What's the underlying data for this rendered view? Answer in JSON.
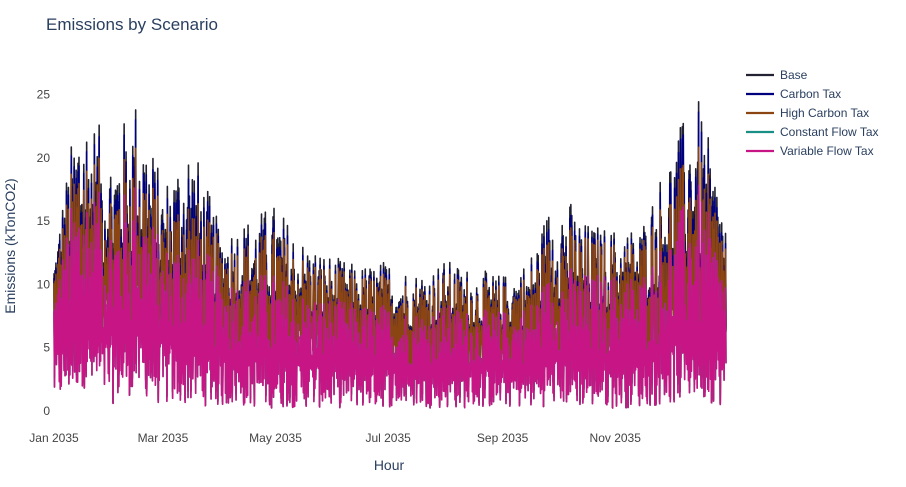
{
  "chart_data": {
    "type": "line",
    "title": "Emissions by Scenario",
    "xlabel": "Hour",
    "ylabel": "Emissions (kTonCO2)",
    "x_range": [
      "2035-01-01",
      "2035-12-31"
    ],
    "ylim": [
      0,
      26
    ],
    "x_ticks": [
      {
        "date": "2035-01-01",
        "label": "Jan 2035"
      },
      {
        "date": "2035-03-01",
        "label": "Mar 2035"
      },
      {
        "date": "2035-05-01",
        "label": "May 2035"
      },
      {
        "date": "2035-07-01",
        "label": "Jul 2035"
      },
      {
        "date": "2035-09-01",
        "label": "Sep 2035"
      },
      {
        "date": "2035-11-01",
        "label": "Nov 2035"
      }
    ],
    "y_ticks": [
      0,
      5,
      10,
      15,
      20,
      25
    ],
    "grid": false,
    "legend_position": "top-right",
    "series": [
      {
        "name": "Base",
        "color": "#222233",
        "x": [
          "2035-01-01",
          "2035-01-15",
          "2035-02-01",
          "2035-02-15",
          "2035-03-01",
          "2035-03-15",
          "2035-04-01",
          "2035-04-15",
          "2035-05-01",
          "2035-05-15",
          "2035-06-01",
          "2035-06-15",
          "2035-07-01",
          "2035-07-15",
          "2035-08-01",
          "2035-08-15",
          "2035-09-01",
          "2035-09-15",
          "2035-10-01",
          "2035-10-15",
          "2035-11-01",
          "2035-11-15",
          "2035-12-01",
          "2035-12-15",
          "2035-12-31"
        ],
        "max": [
          13,
          25.3,
          21,
          25.3,
          18,
          22.3,
          14.5,
          15.3,
          16.5,
          13.7,
          12.3,
          11.5,
          12,
          11,
          12,
          11.3,
          10.8,
          12,
          18.3,
          15,
          14.5,
          14.8,
          21,
          25.3,
          16
        ],
        "mid": [
          8,
          12,
          11,
          12,
          10,
          10.5,
          8.5,
          8.5,
          8.3,
          7.5,
          7,
          6.7,
          6.8,
          6.5,
          6.7,
          6.5,
          6.2,
          6.8,
          8.5,
          7.8,
          8,
          8.3,
          10.5,
          12,
          8.5
        ],
        "min": [
          0.5,
          2,
          0.5,
          1.5,
          0.3,
          0.5,
          0.3,
          0.3,
          0.2,
          0.3,
          0.2,
          0.3,
          0.3,
          0.3,
          0.2,
          0.2,
          0.3,
          0.2,
          0.5,
          0.3,
          0.2,
          0.3,
          0.5,
          1,
          0.3
        ]
      },
      {
        "name": "Carbon Tax",
        "color": "#00007f",
        "x": [
          "2035-01-01",
          "2035-01-15",
          "2035-02-01",
          "2035-02-15",
          "2035-03-01",
          "2035-03-15",
          "2035-04-01",
          "2035-04-15",
          "2035-05-01",
          "2035-05-15",
          "2035-06-01",
          "2035-06-15",
          "2035-07-01",
          "2035-07-15",
          "2035-08-01",
          "2035-08-15",
          "2035-09-01",
          "2035-09-15",
          "2035-10-01",
          "2035-10-15",
          "2035-11-01",
          "2035-11-15",
          "2035-12-01",
          "2035-12-15",
          "2035-12-31"
        ],
        "max": [
          12.5,
          24.5,
          20,
          24.5,
          17,
          21,
          14,
          14.5,
          15.5,
          13,
          11.8,
          11,
          11.5,
          10.5,
          11.5,
          10.8,
          10.3,
          11.5,
          17,
          14.5,
          14,
          14.3,
          20,
          24.5,
          15
        ],
        "mid": [
          7.8,
          11.5,
          10.5,
          11.5,
          9.6,
          10,
          8.2,
          8.2,
          8,
          7.3,
          6.8,
          6.5,
          6.6,
          6.3,
          6.5,
          6.3,
          6,
          6.6,
          8.2,
          7.5,
          7.8,
          8,
          10,
          11.5,
          8.2
        ],
        "min": [
          0.5,
          2,
          0.5,
          1.5,
          0.3,
          0.5,
          0.3,
          0.3,
          0.2,
          0.3,
          0.2,
          0.3,
          0.3,
          0.3,
          0.2,
          0.2,
          0.3,
          0.2,
          0.5,
          0.3,
          0.2,
          0.3,
          0.5,
          1,
          0.3
        ]
      },
      {
        "name": "High Carbon Tax",
        "color": "#8b4513",
        "x": [
          "2035-01-01",
          "2035-01-15",
          "2035-02-01",
          "2035-02-15",
          "2035-03-01",
          "2035-03-15",
          "2035-04-01",
          "2035-04-15",
          "2035-05-01",
          "2035-05-15",
          "2035-06-01",
          "2035-06-15",
          "2035-07-01",
          "2035-07-15",
          "2035-08-01",
          "2035-08-15",
          "2035-09-01",
          "2035-09-15",
          "2035-10-01",
          "2035-10-15",
          "2035-11-01",
          "2035-11-15",
          "2035-12-01",
          "2035-12-15",
          "2035-12-31"
        ],
        "max": [
          12,
          22.5,
          18.5,
          22,
          16,
          18,
          13.5,
          13.5,
          14.5,
          12.5,
          11.5,
          10.8,
          11,
          10.2,
          11,
          10.5,
          10,
          11,
          15.5,
          14,
          13.5,
          13.8,
          18,
          21.5,
          14.5
        ],
        "mid": [
          7.5,
          11,
          10,
          11,
          9.3,
          9.5,
          8,
          8,
          7.8,
          7.2,
          6.7,
          6.4,
          6.5,
          6.2,
          6.4,
          6.2,
          5.9,
          6.5,
          8,
          7.3,
          7.6,
          7.8,
          9.5,
          11,
          8
        ],
        "min": [
          0.5,
          2,
          0.5,
          1.5,
          0.3,
          0.5,
          0.3,
          0.3,
          0.2,
          0.3,
          0.2,
          0.3,
          0.3,
          0.3,
          0.2,
          0.2,
          0.3,
          0.2,
          0.5,
          0.3,
          0.2,
          0.3,
          0.5,
          1,
          0.3
        ]
      },
      {
        "name": "Constant Flow Tax",
        "color": "#1a8f85",
        "x": [
          "2035-01-01",
          "2035-01-15",
          "2035-02-01",
          "2035-02-15",
          "2035-03-01",
          "2035-03-15",
          "2035-04-01",
          "2035-04-15",
          "2035-05-01",
          "2035-05-15",
          "2035-06-01",
          "2035-06-15",
          "2035-07-01",
          "2035-07-15",
          "2035-08-01",
          "2035-08-15",
          "2035-09-01",
          "2035-09-15",
          "2035-10-01",
          "2035-10-15",
          "2035-11-01",
          "2035-11-15",
          "2035-12-01",
          "2035-12-15",
          "2035-12-31"
        ],
        "max": [
          10,
          19.5,
          16,
          19,
          13,
          15,
          11,
          11,
          11,
          9.5,
          9,
          8.5,
          8.5,
          8,
          8.5,
          8,
          8,
          8.5,
          12,
          11,
          11,
          11,
          14.5,
          18.5,
          11.5
        ],
        "mid": [
          5,
          6.5,
          6,
          6.5,
          5.5,
          5.5,
          4.5,
          4.5,
          4.3,
          4,
          3.8,
          3.6,
          3.7,
          3.5,
          3.6,
          3.5,
          3.4,
          3.7,
          4.5,
          4.2,
          4.3,
          4.5,
          5.5,
          6.5,
          4.8
        ],
        "min": [
          0.5,
          2,
          0.5,
          1.5,
          0.3,
          0.5,
          0.3,
          0.3,
          0.2,
          0.3,
          0.2,
          0.3,
          0.3,
          0.3,
          0.2,
          0.2,
          0.3,
          0.2,
          0.5,
          0.3,
          0.2,
          0.3,
          0.5,
          1,
          0.3
        ]
      },
      {
        "name": "Variable Flow Tax",
        "color": "#c71585",
        "x": [
          "2035-01-01",
          "2035-01-15",
          "2035-02-01",
          "2035-02-15",
          "2035-03-01",
          "2035-03-15",
          "2035-04-01",
          "2035-04-15",
          "2035-05-01",
          "2035-05-15",
          "2035-06-01",
          "2035-06-15",
          "2035-07-01",
          "2035-07-15",
          "2035-08-01",
          "2035-08-15",
          "2035-09-01",
          "2035-09-15",
          "2035-10-01",
          "2035-10-15",
          "2035-11-01",
          "2035-11-15",
          "2035-12-01",
          "2035-12-15",
          "2035-12-31"
        ],
        "max": [
          10,
          19.5,
          16,
          19,
          13,
          15,
          11,
          11,
          11,
          9.5,
          9,
          8.5,
          8.5,
          8,
          8.5,
          8,
          8,
          8.5,
          12,
          11,
          11,
          11,
          14.5,
          18.5,
          11.5
        ],
        "mid": [
          5,
          6.5,
          6,
          6.5,
          5.5,
          5.5,
          4.5,
          4.5,
          4.3,
          4,
          3.8,
          3.6,
          3.7,
          3.5,
          3.6,
          3.5,
          3.4,
          3.7,
          4.5,
          4.2,
          4.3,
          4.5,
          5.5,
          6.5,
          4.8
        ],
        "min": [
          0.5,
          2,
          0.5,
          1.5,
          0.3,
          0.5,
          0.3,
          0.3,
          0.2,
          0.3,
          0.2,
          0.3,
          0.3,
          0.3,
          0.2,
          0.2,
          0.3,
          0.2,
          0.5,
          0.3,
          0.2,
          0.3,
          0.5,
          1,
          0.3
        ]
      }
    ]
  },
  "colors": {
    "text": "#2a3f5f",
    "axis_text": "#444444",
    "background": "#ffffff"
  }
}
